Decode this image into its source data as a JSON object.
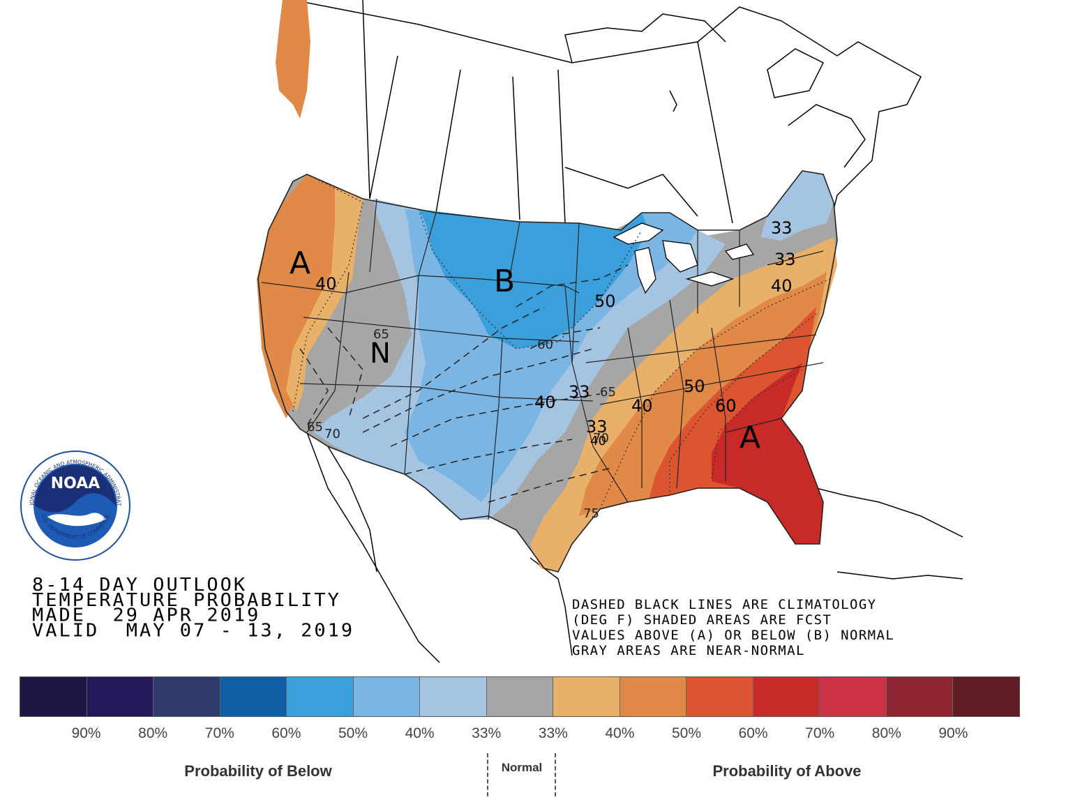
{
  "outlook": {
    "line1": "8-14 DAY OUTLOOK",
    "line2": "TEMPERATURE PROBABILITY",
    "line3": "MADE  29 APR 2019",
    "line4": "VALID  MAY 07 - 13, 2019"
  },
  "note": {
    "line1": "DASHED BLACK LINES ARE CLIMATOLOGY",
    "line2": "(DEG F) SHADED AREAS ARE FCST",
    "line3": "VALUES ABOVE (A) OR BELOW (B) NORMAL",
    "line4": "GRAY AREAS ARE NEAR-NORMAL"
  },
  "logo": {
    "text": "NOAA",
    "ring_top": "NATIONAL OCEANIC AND ATMOSPHERIC ADMINISTRATION",
    "ring_bottom": "U.S. DEPARTMENT OF COMMERCE"
  },
  "map_labels": {
    "above_west": "A",
    "above_southeast": "A",
    "below": "B",
    "normal": "N",
    "contours": [
      "40",
      "50",
      "60",
      "33",
      "33",
      "40",
      "50",
      "60",
      "40",
      "33",
      "33",
      "40",
      "40"
    ],
    "climatology": [
      "65",
      "65",
      "70",
      "60",
      "65",
      "70",
      "75"
    ]
  },
  "legend": {
    "colors": [
      "#1c1745",
      "#24185a",
      "#2e3b6c",
      "#0f5ea3",
      "#3a9fdb",
      "#7ab5e3",
      "#a5c4e2",
      "#a6a6a6",
      "#e8b068",
      "#e18a48",
      "#dc5530",
      "#c82a28",
      "#cc3246",
      "#8e2632",
      "#5f1c22"
    ],
    "ticks": [
      "90%",
      "80%",
      "70%",
      "60%",
      "50%",
      "40%",
      "33%",
      "33%",
      "40%",
      "50%",
      "60%",
      "70%",
      "80%",
      "90%"
    ],
    "below_label": "Probability of Below",
    "normal_label": "Normal",
    "above_label": "Probability of Above"
  }
}
